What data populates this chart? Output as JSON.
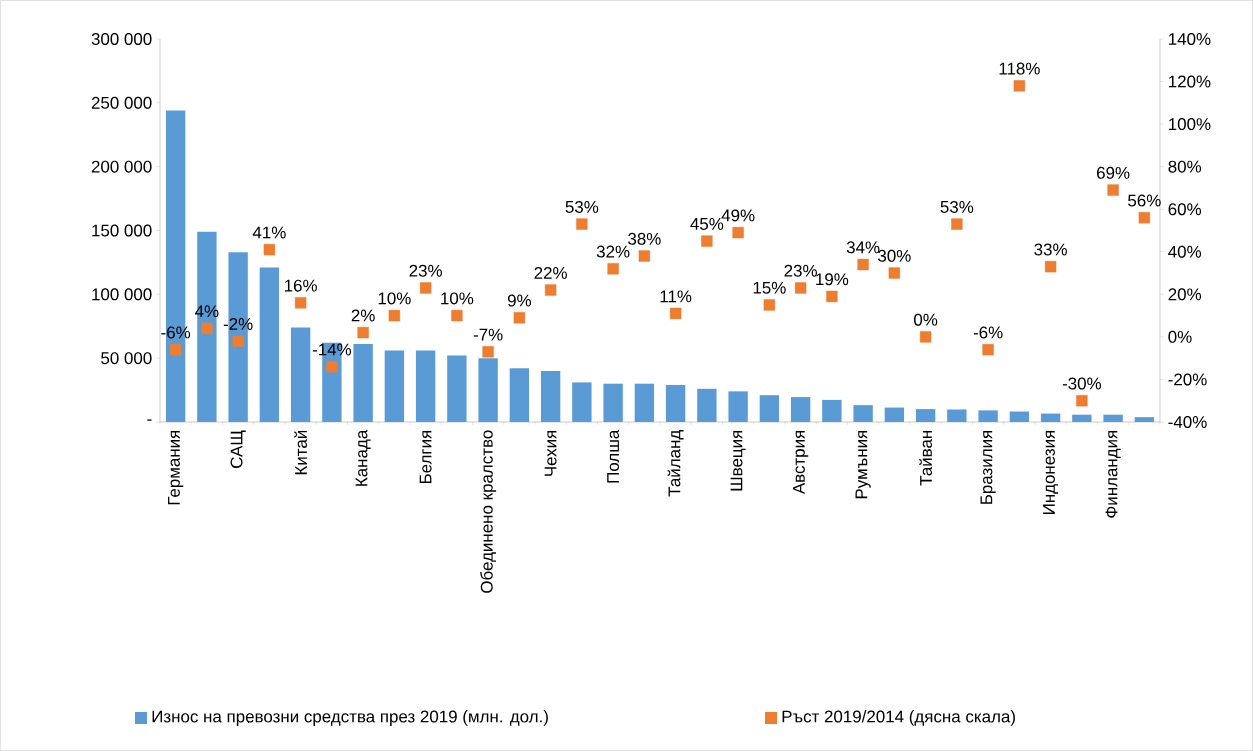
{
  "chart_data": {
    "type": "bar",
    "categories": [
      "Германия",
      null,
      "САЩ",
      null,
      "Китай",
      null,
      "Канада",
      null,
      "Белгия",
      null,
      "Обединено кралство",
      null,
      "Чехия",
      null,
      "Полша",
      null,
      "Тайланд",
      null,
      "Швеция",
      null,
      "Австрия",
      null,
      "Румъния",
      null,
      "Тайван",
      null,
      "Бразилия",
      null,
      "Индонезия",
      null,
      "Финландия",
      null
    ],
    "series": [
      {
        "name": "Износ на превозни средства през 2019 (млн. дол.)",
        "color": "#5b9bd5",
        "values": [
          244000,
          149000,
          133000,
          121000,
          74000,
          62000,
          61000,
          56000,
          56000,
          52000,
          50000,
          42000,
          40000,
          31000,
          30000,
          30000,
          29000,
          26000,
          24000,
          21000,
          19500,
          17300,
          13200,
          11300,
          10100,
          9800,
          9100,
          8200,
          6600,
          5700,
          5700,
          3800
        ]
      },
      {
        "name": "Ръст 2019/2014 (дясна скала)",
        "type": "scatter",
        "axis": "y2",
        "color": "#ed7d31",
        "marker": "square",
        "values": [
          -6,
          4,
          -2,
          41,
          16,
          -14,
          2,
          10,
          23,
          10,
          -7,
          9,
          22,
          53,
          32,
          38,
          11,
          45,
          49,
          15,
          23,
          19,
          34,
          30,
          0,
          53,
          -6,
          118,
          33,
          -30,
          69,
          56
        ],
        "value_labels": [
          "-6%",
          "4%",
          "-2%",
          "41%",
          "16%",
          "-14%",
          "2%",
          "10%",
          "23%",
          "10%",
          "-7%",
          "9%",
          "22%",
          "53%",
          "32%",
          "38%",
          "11%",
          "45%",
          "49%",
          "15%",
          "23%",
          "19%",
          "34%",
          "30%",
          "0%",
          "53%",
          "-6%",
          "118%",
          "33%",
          "-30%",
          "69%",
          "56%"
        ]
      }
    ],
    "ylim": [
      0,
      300000
    ],
    "yticks": [
      {
        "value": 0,
        "label": "-"
      },
      {
        "value": 50000,
        "label": "50 000"
      },
      {
        "value": 100000,
        "label": "100 000"
      },
      {
        "value": 150000,
        "label": "150 000"
      },
      {
        "value": 200000,
        "label": "200 000"
      },
      {
        "value": 250000,
        "label": "250 000"
      },
      {
        "value": 300000,
        "label": "300 000"
      }
    ],
    "y2lim": [
      -40,
      140
    ],
    "y2ticks": [
      {
        "value": -40,
        "label": "-40%"
      },
      {
        "value": -20,
        "label": "-20%"
      },
      {
        "value": 0,
        "label": "0%"
      },
      {
        "value": 20,
        "label": "20%"
      },
      {
        "value": 40,
        "label": "40%"
      },
      {
        "value": 60,
        "label": "60%"
      },
      {
        "value": 80,
        "label": "80%"
      },
      {
        "value": 100,
        "label": "100%"
      },
      {
        "value": 120,
        "label": "120%"
      },
      {
        "value": 140,
        "label": "140%"
      }
    ],
    "legend": "bottom",
    "grid": false
  }
}
